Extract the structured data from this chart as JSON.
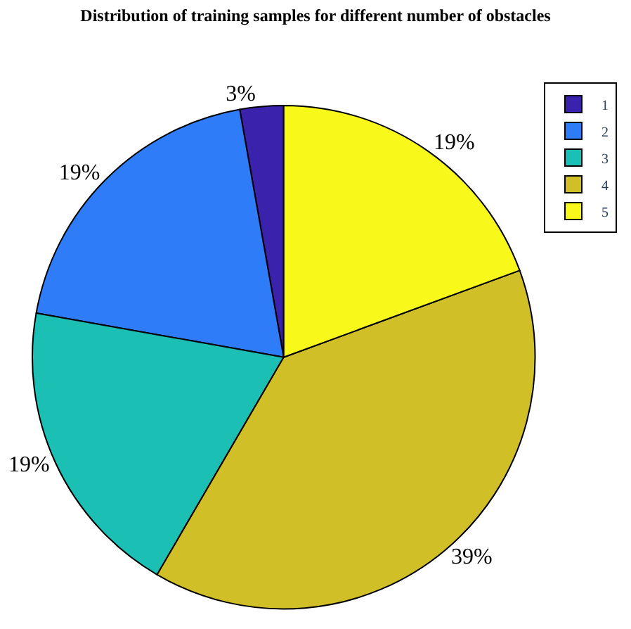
{
  "chart_data": {
    "type": "pie",
    "title": "Distribution of training samples for different number of obstacles",
    "categories": [
      "1",
      "2",
      "3",
      "4",
      "5"
    ],
    "values": [
      2.8,
      19.4,
      19.4,
      39,
      19.4
    ],
    "value_labels": [
      "3%",
      "19%",
      "19%",
      "39%",
      "19%"
    ],
    "colors": [
      "#3b22ac",
      "#2f7cf8",
      "#1bbfb3",
      "#d0bf27",
      "#f8f81a"
    ],
    "legend": "top right"
  }
}
